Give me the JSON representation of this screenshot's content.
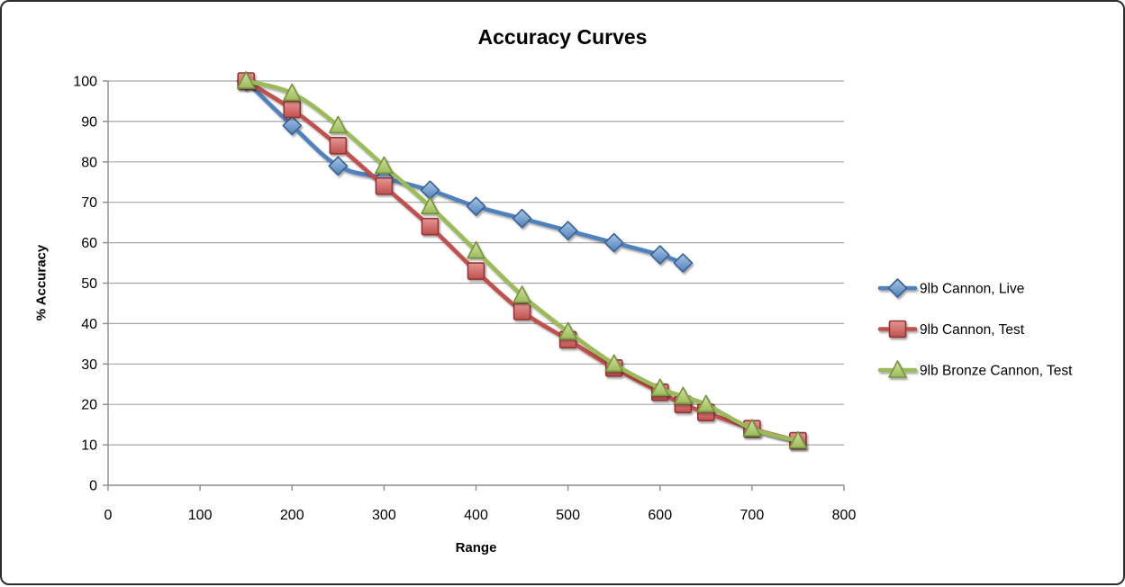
{
  "window": {
    "background": "#FFFFFF",
    "border_color": "#2B2B2B"
  },
  "chart_data": {
    "type": "line",
    "title": "Accuracy Curves",
    "xlabel": "Range",
    "ylabel": "% Accuracy",
    "xlim": [
      0,
      800
    ],
    "ylim": [
      0,
      100
    ],
    "x_ticks": [
      0,
      100,
      200,
      300,
      400,
      500,
      600,
      700,
      800
    ],
    "y_ticks": [
      0,
      10,
      20,
      30,
      40,
      50,
      60,
      70,
      80,
      90,
      100
    ],
    "grid": "horizontal-only",
    "gridline_color": "#A6A6A6",
    "axis_color": "#8C8C8C",
    "text_color": "#000000",
    "legend_position": "right",
    "smooth_lines": true,
    "series": [
      {
        "name": "9lb Cannon, Live",
        "marker": "diamond",
        "color": "#4F81BD",
        "color_light": "#A8C6E5",
        "color_dark": "#3A6191",
        "x": [
          150,
          200,
          250,
          300,
          350,
          400,
          450,
          500,
          550,
          600,
          625
        ],
        "y": [
          100,
          89,
          79,
          76,
          73,
          69,
          66,
          63,
          60,
          57,
          55
        ]
      },
      {
        "name": "9lb Cannon, Test",
        "marker": "square",
        "color": "#C0504D",
        "color_light": "#E49694",
        "color_dark": "#943634",
        "x": [
          150,
          200,
          250,
          300,
          350,
          400,
          450,
          500,
          550,
          600,
          625,
          650,
          700,
          750
        ],
        "y": [
          100,
          93,
          84,
          74,
          64,
          53,
          43,
          36,
          29,
          23,
          20,
          18,
          14,
          11
        ]
      },
      {
        "name": "9lb Bronze Cannon, Test",
        "marker": "triangle",
        "color": "#9BBB59",
        "color_light": "#D2E2A3",
        "color_dark": "#76923C",
        "x": [
          150,
          200,
          250,
          300,
          350,
          400,
          450,
          500,
          550,
          600,
          625,
          650,
          700,
          750
        ],
        "y": [
          100,
          97,
          89,
          79,
          69,
          58,
          47,
          38,
          30,
          24,
          22,
          20,
          14,
          11
        ]
      }
    ]
  }
}
